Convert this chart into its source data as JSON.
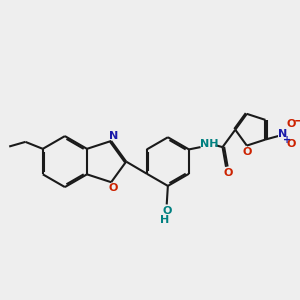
{
  "bg": "#eeeeee",
  "bc": "#1a1a1a",
  "nc": "#1a1aaa",
  "oc": "#cc2200",
  "hc": "#008080",
  "lw": 1.5,
  "dg": 0.06,
  "fs": 8.0,
  "figsize": [
    3.0,
    3.0
  ],
  "dpi": 100,
  "xlim": [
    0,
    12
  ],
  "ylim": [
    0,
    12
  ]
}
